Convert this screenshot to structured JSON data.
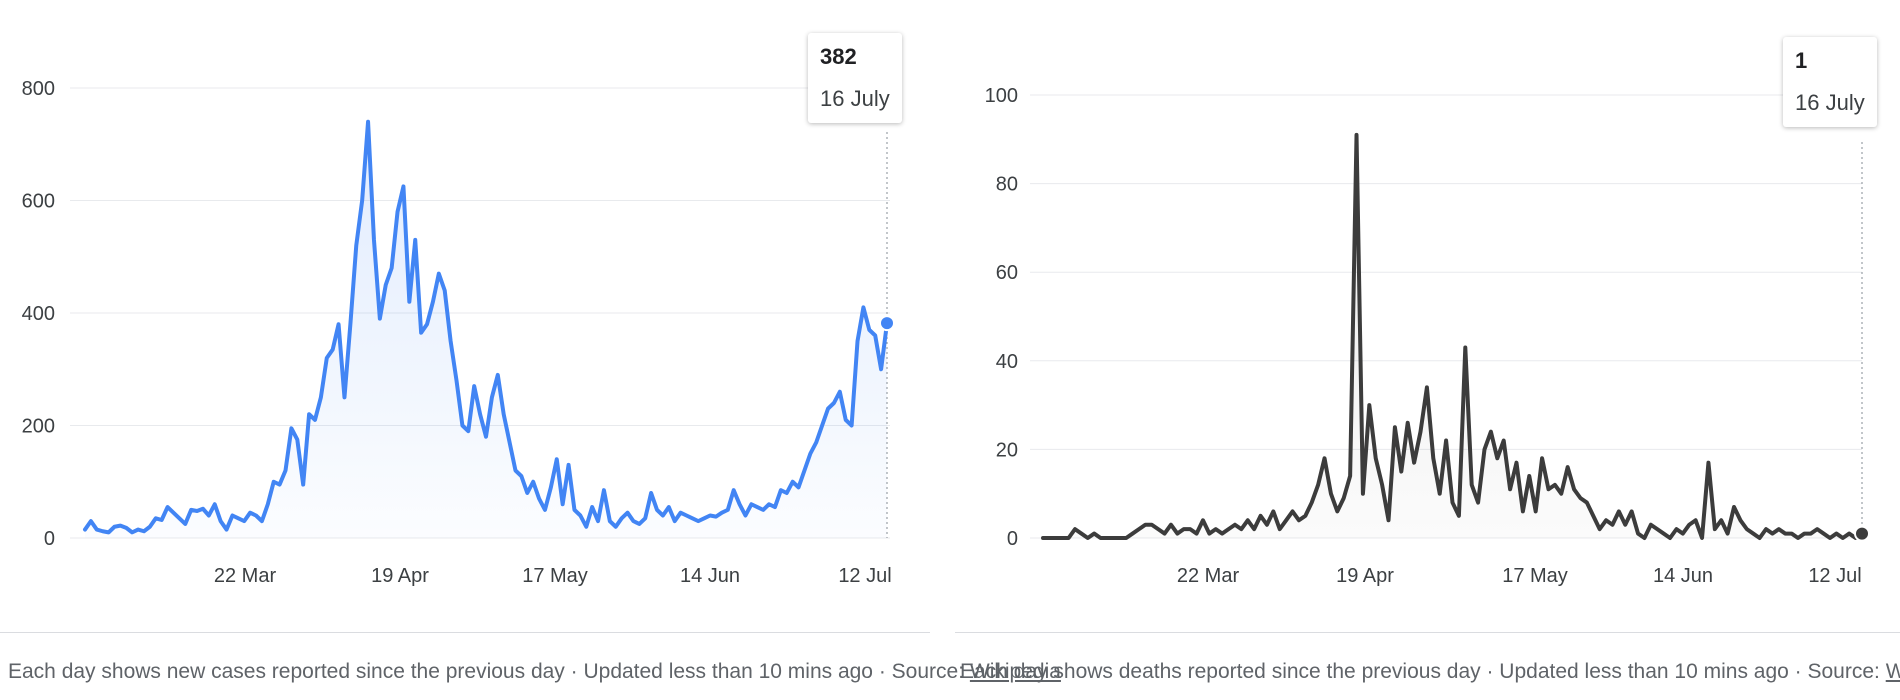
{
  "charts": {
    "cases": {
      "tooltip": {
        "value": "382",
        "date": "16 July"
      },
      "footer": {
        "text": "Each day shows new cases reported since the previous day · Updated less than 10 mins ago",
        "sep": " · ",
        "source_label": "Source:",
        "source_link": "Wikipedia"
      }
    },
    "deaths": {
      "tooltip": {
        "value": "1",
        "date": "16 July"
      },
      "footer": {
        "text": "Each day shows deaths reported since the previous day · Updated less than 10 mins ago",
        "sep": " · ",
        "source_label": "Source:",
        "source_link": "Wikipedia",
        "trailing": " ·"
      }
    }
  },
  "colors": {
    "cases_line": "#4285f4",
    "deaths_line": "#3c3c3c",
    "grid": "#e8eaed"
  },
  "chart_data": [
    {
      "type": "area",
      "x_tick_labels": [
        "22 Mar",
        "19 Apr",
        "17 May",
        "14 Jun",
        "12 Jul"
      ],
      "y_tick_labels": [
        "0",
        "200",
        "400",
        "600",
        "800"
      ],
      "ylim": [
        0,
        800
      ],
      "grid": true,
      "series": [
        {
          "values": [
            15,
            30,
            15,
            12,
            10,
            20,
            22,
            18,
            10,
            15,
            12,
            20,
            35,
            32,
            55,
            45,
            35,
            25,
            50,
            48,
            52,
            40,
            60,
            30,
            15,
            40,
            35,
            30,
            45,
            40,
            30,
            60,
            100,
            95,
            120,
            195,
            175,
            95,
            220,
            210,
            250,
            320,
            335,
            380,
            250,
            380,
            520,
            600,
            740,
            530,
            390,
            450,
            480,
            580,
            625,
            420,
            530,
            365,
            380,
            420,
            470,
            440,
            350,
            280,
            200,
            190,
            270,
            220,
            180,
            250,
            290,
            220,
            170,
            120,
            110,
            80,
            100,
            70,
            50,
            90,
            140,
            60,
            130,
            50,
            40,
            20,
            55,
            30,
            85,
            30,
            20,
            35,
            45,
            30,
            25,
            35,
            80,
            50,
            40,
            55,
            30,
            45,
            40,
            35,
            30,
            35,
            40,
            38,
            45,
            50,
            85,
            60,
            40,
            60,
            55,
            50,
            60,
            55,
            85,
            80,
            100,
            90,
            120,
            150,
            170,
            200,
            230,
            240,
            260,
            210,
            200,
            350,
            410,
            370,
            360,
            300,
            382
          ]
        }
      ]
    },
    {
      "type": "area",
      "x_tick_labels": [
        "22 Mar",
        "19 Apr",
        "17 May",
        "14 Jun",
        "12 Jul"
      ],
      "y_tick_labels": [
        "0",
        "20",
        "40",
        "60",
        "80",
        "100"
      ],
      "ylim": [
        0,
        100
      ],
      "grid": true,
      "series": [
        {
          "values": [
            0,
            0,
            0,
            0,
            0,
            2,
            1,
            0,
            1,
            0,
            0,
            0,
            0,
            0,
            1,
            2,
            3,
            3,
            2,
            1,
            3,
            1,
            2,
            2,
            1,
            4,
            1,
            2,
            1,
            2,
            3,
            2,
            4,
            2,
            5,
            3,
            6,
            2,
            4,
            6,
            4,
            5,
            8,
            12,
            18,
            10,
            6,
            9,
            14,
            91,
            10,
            30,
            18,
            12,
            4,
            25,
            15,
            26,
            17,
            24,
            34,
            18,
            10,
            22,
            8,
            5,
            43,
            12,
            8,
            20,
            24,
            18,
            22,
            11,
            17,
            6,
            14,
            6,
            18,
            11,
            12,
            10,
            16,
            11,
            9,
            8,
            5,
            2,
            4,
            3,
            6,
            3,
            6,
            1,
            0,
            3,
            2,
            1,
            0,
            2,
            1,
            3,
            4,
            0,
            17,
            2,
            4,
            1,
            7,
            4,
            2,
            1,
            0,
            2,
            1,
            2,
            1,
            1,
            0,
            1,
            1,
            2,
            1,
            0,
            1,
            0,
            1,
            0,
            1
          ]
        }
      ]
    }
  ]
}
